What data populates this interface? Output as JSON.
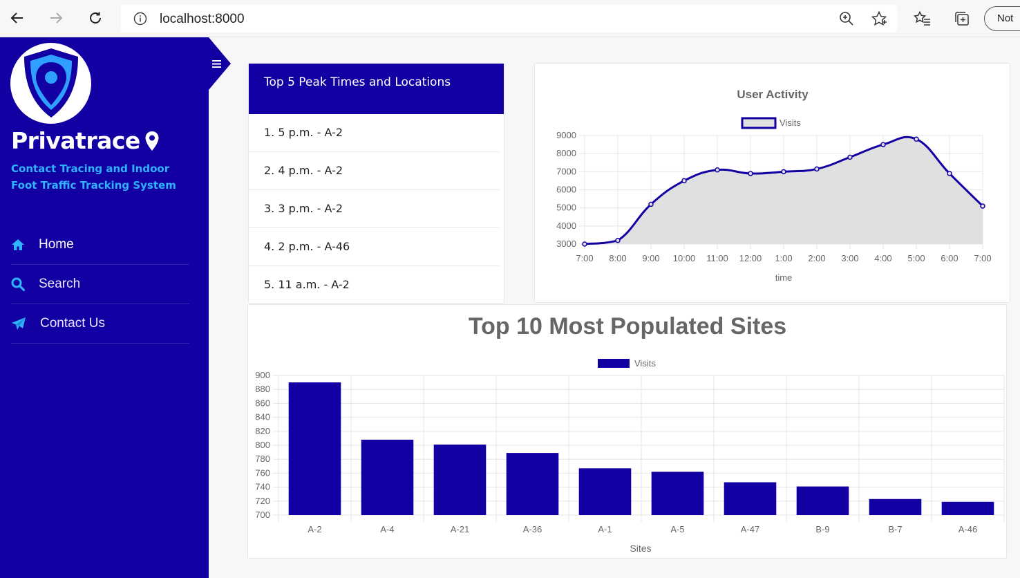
{
  "browser": {
    "url": "localhost:8000",
    "profile_label": "Not"
  },
  "sidebar": {
    "brand": "Privatrace",
    "tagline": "Contact Tracing and Indoor Foot Traffic Tracking System",
    "menu": [
      {
        "label": "Home",
        "icon": "home-icon"
      },
      {
        "label": "Search",
        "icon": "search-icon"
      },
      {
        "label": "Contact Us",
        "icon": "paper-plane-icon"
      }
    ]
  },
  "peak": {
    "title": "Top 5 Peak Times and Locations",
    "items": [
      "1. 5 p.m. - A-2",
      "2. 4 p.m. - A-2",
      "3. 3 p.m. - A-2",
      "4. 2 p.m. - A-46",
      "5. 11 a.m. - A-2"
    ]
  },
  "colors": {
    "brand": "#1200a3",
    "accent": "#2fb3ff",
    "line_fill": "#e0e0e0"
  },
  "chart_data": [
    {
      "type": "line",
      "title": "User Activity",
      "xlabel": "time",
      "ylabel": "",
      "categories": [
        "7:00",
        "8:00",
        "9:00",
        "10:00",
        "11:00",
        "12:00",
        "1:00",
        "2:00",
        "3:00",
        "4:00",
        "5:00",
        "6:00",
        "7:00"
      ],
      "series": [
        {
          "name": "Visits",
          "values": [
            3000,
            3200,
            5200,
            6500,
            7100,
            6900,
            7000,
            7150,
            7800,
            8500,
            8800,
            6900,
            5100
          ]
        }
      ],
      "yticks": [
        3000,
        4000,
        5000,
        6000,
        7000,
        8000,
        9000
      ],
      "ylim": [
        3000,
        9000
      ],
      "legend": "top",
      "grid": true
    },
    {
      "type": "bar",
      "title": "Top 10 Most Populated Sites",
      "xlabel": "Sites",
      "ylabel": "",
      "categories": [
        "A-2",
        "A-4",
        "A-21",
        "A-36",
        "A-1",
        "A-5",
        "A-47",
        "B-9",
        "B-7",
        "A-46"
      ],
      "series": [
        {
          "name": "Visits",
          "values": [
            890,
            808,
            801,
            789,
            767,
            762,
            747,
            741,
            723,
            719
          ]
        }
      ],
      "yticks": [
        700,
        720,
        740,
        760,
        780,
        800,
        820,
        840,
        860,
        880,
        900
      ],
      "ylim": [
        700,
        900
      ],
      "legend": "top",
      "grid": true
    }
  ]
}
